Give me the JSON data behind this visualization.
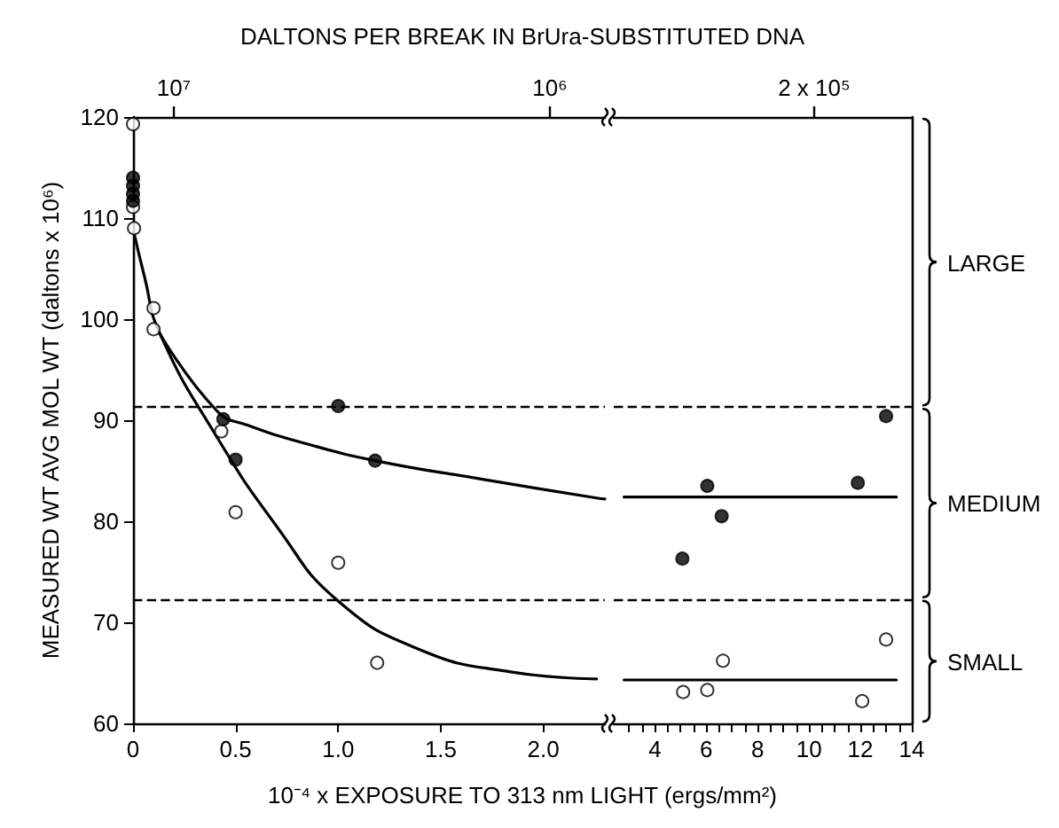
{
  "chart_data": [
    {
      "type": "scatter",
      "x2label": "DALTONS PER BREAK IN BrUra-SUBSTITUTED DNA",
      "xlabel": "10⁻⁴ x EXPOSURE TO 313 nm LIGHT (ergs/mm²)",
      "ylabel": "MEASURED WT AVG MOL WT (daltons x 10⁶)",
      "xlim": [
        0,
        2.3
      ],
      "xticks": [
        0,
        0.5,
        {
          "value": 1,
          "label": "1.0"
        },
        1.5,
        {
          "value": 2,
          "label": "2.0"
        }
      ],
      "annotations": [
        "10⁷",
        "10⁶"
      ],
      "ylim": [
        60,
        120
      ],
      "yticks": [
        60,
        70,
        80,
        90,
        100,
        110,
        120
      ],
      "marker": "circle",
      "ref_lines": [
        {
          "axis": "y",
          "value": 91.3,
          "line_style": "dashed",
          "color": "#000000"
        },
        {
          "axis": "y",
          "value": 72.3,
          "line_style": "dashed",
          "color": "#000000"
        }
      ],
      "series": [
        {
          "type": "scatter",
          "color": "#000000",
          "x": [
            0,
            0,
            0,
            0,
            0.44,
            0.5,
            1.0,
            1.18
          ],
          "values": [
            114,
            113.2,
            112.4,
            111.7,
            90.1,
            86.1,
            91.4,
            86
          ]
        },
        {
          "type": "scatter",
          "color": "#ffffff",
          "x": [
            0,
            0,
            0.005,
            0.1,
            0.1,
            0.43,
            0.5,
            1.0,
            1.19
          ],
          "values": [
            119.3,
            111.1,
            109,
            101.1,
            99,
            88.9,
            80.9,
            75.9,
            66
          ]
        },
        {
          "type": "line",
          "marker": "none",
          "color": "#000000",
          "x": [
            0.13,
            0.41,
            0.56,
            0.84,
            1.18,
            1.69,
            2.26,
            2.3
          ],
          "values": [
            98.6,
            90.9,
            89.5,
            87.7,
            86,
            84.2,
            82.3,
            82.2
          ]
        },
        {
          "type": "line",
          "marker": "none",
          "color": "#000000",
          "x": [
            0.003,
            0.057,
            0.13,
            0.41,
            0.7,
            1.0,
            1.41,
            1.84,
            2.26
          ],
          "values": [
            108.7,
            104.1,
            98.6,
            88.3,
            79.5,
            72.1,
            67.2,
            65.1,
            64.4
          ]
        }
      ]
    },
    {
      "type": "scatter",
      "xlim": [
        2.4,
        14
      ],
      "xticks": [
        {
          "value": 3,
          "label": null
        },
        {
          "value": 3.5,
          "label": null
        },
        4,
        {
          "value": 4.5,
          "label": null
        },
        {
          "value": 5,
          "label": null
        },
        {
          "value": 5.5,
          "label": null
        },
        6,
        {
          "value": 6.5,
          "label": null
        },
        {
          "value": 7,
          "label": null
        },
        {
          "value": 7.5,
          "label": null
        },
        8,
        {
          "value": 8.5,
          "label": null
        },
        {
          "value": 9,
          "label": null
        },
        {
          "value": 9.5,
          "label": null
        },
        10,
        {
          "value": 10.5,
          "label": null
        },
        {
          "value": 11,
          "label": null
        },
        {
          "value": 11.5,
          "label": null
        },
        12,
        {
          "value": 12.5,
          "label": null
        },
        {
          "value": 13,
          "label": null
        },
        {
          "value": 13.5,
          "label": null
        },
        14
      ],
      "annotations": [
        "2 x 10⁵",
        "LARGE",
        "MEDIUM",
        "SMALL"
      ],
      "ylim": [
        60,
        120
      ],
      "tick_labels": "x",
      "marker": "circle",
      "ref_lines": [
        {
          "axis": "y",
          "value": 91.3,
          "line_style": "dashed",
          "color": "#000000"
        },
        {
          "axis": "y",
          "value": 72.3,
          "line_style": "dashed",
          "color": "#000000"
        }
      ],
      "series": [
        {
          "type": "scatter",
          "color": "#000000",
          "x": [
            5.07,
            6.04,
            6.6,
            11.9,
            13.0
          ],
          "values": [
            76.3,
            83.5,
            80.5,
            83.8,
            90.4
          ]
        },
        {
          "type": "scatter",
          "color": "#ffffff",
          "x": [
            5.1,
            6.04,
            6.65,
            12.07,
            13.0
          ],
          "values": [
            63.1,
            63.3,
            66.2,
            62.2,
            68.3
          ]
        },
        {
          "type": "line",
          "marker": "none",
          "color": "#000000",
          "x": [
            2.8,
            13.4
          ],
          "values": [
            82.4,
            82.4
          ]
        },
        {
          "type": "line",
          "marker": "none",
          "color": "#000000",
          "x": [
            2.8,
            13.4
          ],
          "values": [
            64.3,
            64.3
          ]
        }
      ]
    }
  ]
}
